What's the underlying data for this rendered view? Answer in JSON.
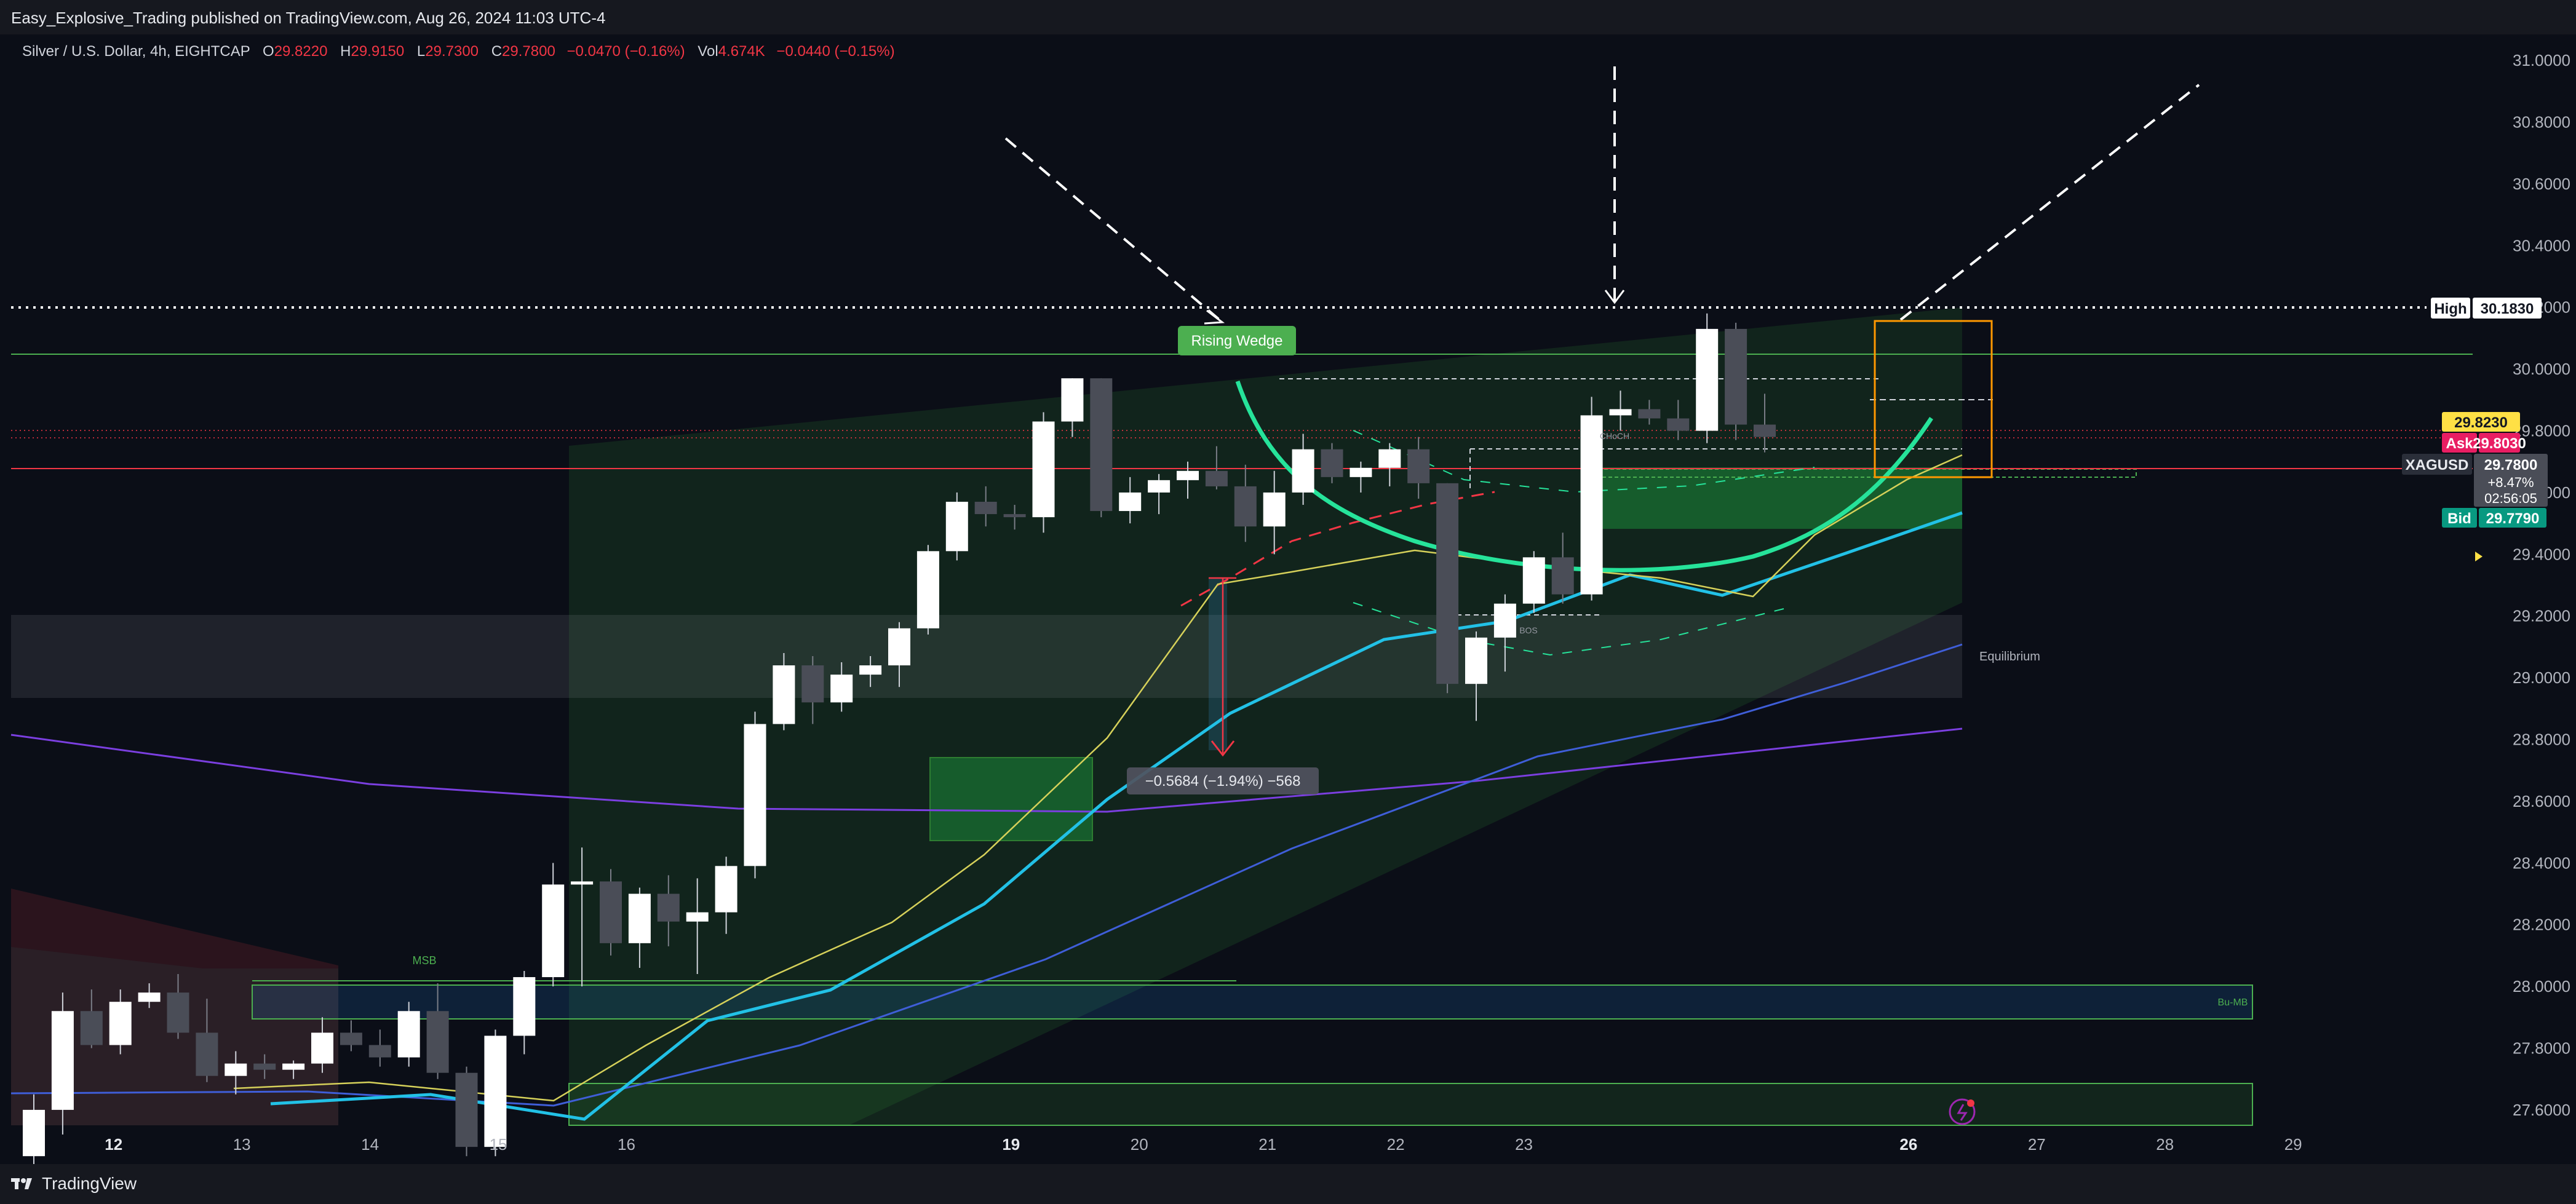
{
  "header": {
    "published": "Easy_Explosive_Trading published on TradingView.com, Aug 26, 2024 11:03 UTC-4"
  },
  "footer": {
    "brand": "TradingView",
    "logo_icon": "tradingview-logo-icon"
  },
  "legend": {
    "symbol": "Silver / U.S. Dollar, 4h, EIGHTCAP",
    "o_label": "O",
    "o": "29.8220",
    "h_label": "H",
    "h": "29.9150",
    "l_label": "L",
    "l": "29.7300",
    "c_label": "C",
    "c": "29.7800",
    "change": "−0.0470 (−0.16%)",
    "vol_label": "Vol",
    "vol": "4.674K",
    "vol_change": "−0.0440 (−0.15%)"
  },
  "colors": {
    "background": "#0b0e17",
    "bull_candle": "#ffffff",
    "bear_candle": "#4a4d57",
    "ema_fast": "#d6d15a",
    "ema_mid": "#22c1e6",
    "ema_slow": "#3f5ed8",
    "ema_long": "#7b3fe0",
    "curve": "#26e39a",
    "ask": "#e91e63",
    "bid": "#089981",
    "last": "#ffe045"
  },
  "price_labels": {
    "high_label": "High",
    "high_value": "30.1830",
    "last_value": "29.8230",
    "ask_label": "Ask",
    "ask_value": "29.8030",
    "symbol_label": "XAGUSD",
    "symbol_price": "29.7800",
    "symbol_change": "+8.47%",
    "symbol_countdown": "02:56:05",
    "bid_label": "Bid",
    "bid_value": "29.7790"
  },
  "annotations": {
    "rising_wedge": "Rising Wedge",
    "choch": "CHoCH",
    "bos": "BOS",
    "equilibrium": "Equilibrium",
    "msb": "MSB",
    "bu_mb": "Bu-MB",
    "measure": "−0.5684 (−1.94%) −568"
  },
  "chart_data": {
    "type": "candlestick",
    "title": "Silver / U.S. Dollar, 4h, EIGHTCAP",
    "y_axis": {
      "range": [
        27.55,
        31.08
      ],
      "ticks": [
        31.0,
        30.8,
        30.6,
        30.4,
        30.2,
        30.0,
        29.8,
        29.6,
        29.4,
        29.2,
        29.0,
        28.8,
        28.6,
        28.4,
        28.2,
        28.0,
        27.8,
        27.6
      ],
      "tick_labels": [
        "31.0000",
        "30.8000",
        "30.6000",
        "30.4000",
        "30.2000",
        "30.0000",
        "29.8000",
        "29.6000",
        "29.4000",
        "29.2000",
        "29.0000",
        "28.8000",
        "28.6000",
        "28.4000",
        "28.2000",
        "28.0000",
        "27.8000",
        "27.6000"
      ]
    },
    "x_axis": {
      "range": [
        11.2,
        30.4
      ],
      "ticks": [
        12,
        13,
        14,
        15,
        16,
        19,
        20,
        21,
        22,
        23,
        26,
        27,
        28,
        29
      ],
      "tick_labels": [
        "12",
        "13",
        "14",
        "15",
        "16",
        "19",
        "20",
        "21",
        "22",
        "23",
        "26",
        "27",
        "28",
        "29"
      ],
      "bold_ticks": [
        "12",
        "19",
        "26"
      ]
    },
    "candles": [
      {
        "o": 27.45,
        "h": 27.65,
        "l": 27.3,
        "c": 27.6
      },
      {
        "o": 27.6,
        "h": 27.98,
        "l": 27.52,
        "c": 27.92
      },
      {
        "o": 27.92,
        "h": 27.99,
        "l": 27.8,
        "c": 27.81
      },
      {
        "o": 27.81,
        "h": 27.99,
        "l": 27.78,
        "c": 27.95
      },
      {
        "o": 27.95,
        "h": 28.01,
        "l": 27.93,
        "c": 27.98
      },
      {
        "o": 27.98,
        "h": 28.04,
        "l": 27.83,
        "c": 27.85
      },
      {
        "o": 27.85,
        "h": 27.96,
        "l": 27.69,
        "c": 27.71
      },
      {
        "o": 27.71,
        "h": 27.79,
        "l": 27.65,
        "c": 27.75
      },
      {
        "o": 27.75,
        "h": 27.78,
        "l": 27.7,
        "c": 27.73
      },
      {
        "o": 27.73,
        "h": 27.76,
        "l": 27.7,
        "c": 27.75
      },
      {
        "o": 27.75,
        "h": 27.9,
        "l": 27.72,
        "c": 27.85
      },
      {
        "o": 27.85,
        "h": 27.89,
        "l": 27.79,
        "c": 27.81
      },
      {
        "o": 27.81,
        "h": 27.86,
        "l": 27.74,
        "c": 27.77
      },
      {
        "o": 27.77,
        "h": 27.95,
        "l": 27.74,
        "c": 27.92
      },
      {
        "o": 27.92,
        "h": 28.01,
        "l": 27.7,
        "c": 27.72
      },
      {
        "o": 27.72,
        "h": 27.74,
        "l": 27.45,
        "c": 27.48
      },
      {
        "o": 27.48,
        "h": 27.86,
        "l": 27.45,
        "c": 27.84
      },
      {
        "o": 27.84,
        "h": 28.05,
        "l": 27.78,
        "c": 28.03
      },
      {
        "o": 28.03,
        "h": 28.4,
        "l": 28.0,
        "c": 28.33
      },
      {
        "o": 28.33,
        "h": 28.45,
        "l": 28.0,
        "c": 28.34
      },
      {
        "o": 28.34,
        "h": 28.38,
        "l": 28.1,
        "c": 28.14
      },
      {
        "o": 28.14,
        "h": 28.32,
        "l": 28.06,
        "c": 28.3
      },
      {
        "o": 28.3,
        "h": 28.36,
        "l": 28.13,
        "c": 28.21
      },
      {
        "o": 28.21,
        "h": 28.35,
        "l": 28.04,
        "c": 28.24
      },
      {
        "o": 28.24,
        "h": 28.42,
        "l": 28.17,
        "c": 28.39
      },
      {
        "o": 28.39,
        "h": 28.89,
        "l": 28.35,
        "c": 28.85
      },
      {
        "o": 28.85,
        "h": 29.08,
        "l": 28.83,
        "c": 29.04
      },
      {
        "o": 29.04,
        "h": 29.07,
        "l": 28.85,
        "c": 28.92
      },
      {
        "o": 28.92,
        "h": 29.05,
        "l": 28.89,
        "c": 29.01
      },
      {
        "o": 29.01,
        "h": 29.07,
        "l": 28.97,
        "c": 29.04
      },
      {
        "o": 29.04,
        "h": 29.18,
        "l": 28.97,
        "c": 29.16
      },
      {
        "o": 29.16,
        "h": 29.43,
        "l": 29.14,
        "c": 29.41
      },
      {
        "o": 29.41,
        "h": 29.6,
        "l": 29.38,
        "c": 29.57
      },
      {
        "o": 29.57,
        "h": 29.62,
        "l": 29.49,
        "c": 29.53
      },
      {
        "o": 29.53,
        "h": 29.56,
        "l": 29.48,
        "c": 29.52
      },
      {
        "o": 29.52,
        "h": 29.86,
        "l": 29.47,
        "c": 29.83
      },
      {
        "o": 29.83,
        "h": 29.97,
        "l": 29.78,
        "c": 29.97
      },
      {
        "o": 29.97,
        "h": 29.97,
        "l": 29.52,
        "c": 29.54
      },
      {
        "o": 29.54,
        "h": 29.65,
        "l": 29.5,
        "c": 29.6
      },
      {
        "o": 29.6,
        "h": 29.66,
        "l": 29.53,
        "c": 29.64
      },
      {
        "o": 29.64,
        "h": 29.7,
        "l": 29.58,
        "c": 29.67
      },
      {
        "o": 29.67,
        "h": 29.75,
        "l": 29.61,
        "c": 29.62
      },
      {
        "o": 29.62,
        "h": 29.69,
        "l": 29.44,
        "c": 29.49
      },
      {
        "o": 29.49,
        "h": 29.67,
        "l": 29.4,
        "c": 29.6
      },
      {
        "o": 29.6,
        "h": 29.79,
        "l": 29.56,
        "c": 29.74
      },
      {
        "o": 29.74,
        "h": 29.76,
        "l": 29.63,
        "c": 29.65
      },
      {
        "o": 29.65,
        "h": 29.7,
        "l": 29.6,
        "c": 29.68
      },
      {
        "o": 29.68,
        "h": 29.76,
        "l": 29.62,
        "c": 29.74
      },
      {
        "o": 29.74,
        "h": 29.78,
        "l": 29.58,
        "c": 29.63
      },
      {
        "o": 29.63,
        "h": 29.63,
        "l": 28.95,
        "c": 28.98
      },
      {
        "o": 28.98,
        "h": 29.15,
        "l": 28.86,
        "c": 29.13
      },
      {
        "o": 29.13,
        "h": 29.27,
        "l": 29.02,
        "c": 29.24
      },
      {
        "o": 29.24,
        "h": 29.41,
        "l": 29.21,
        "c": 29.39
      },
      {
        "o": 29.39,
        "h": 29.47,
        "l": 29.24,
        "c": 29.27
      },
      {
        "o": 29.27,
        "h": 29.91,
        "l": 29.25,
        "c": 29.85
      },
      {
        "o": 29.85,
        "h": 29.93,
        "l": 29.8,
        "c": 29.87
      },
      {
        "o": 29.87,
        "h": 29.9,
        "l": 29.82,
        "c": 29.84
      },
      {
        "o": 29.84,
        "h": 29.9,
        "l": 29.77,
        "c": 29.8
      },
      {
        "o": 29.8,
        "h": 30.18,
        "l": 29.76,
        "c": 30.13
      },
      {
        "o": 30.13,
        "h": 30.15,
        "l": 29.77,
        "c": 29.82
      },
      {
        "o": 29.82,
        "h": 29.92,
        "l": 29.73,
        "c": 29.78
      }
    ]
  }
}
